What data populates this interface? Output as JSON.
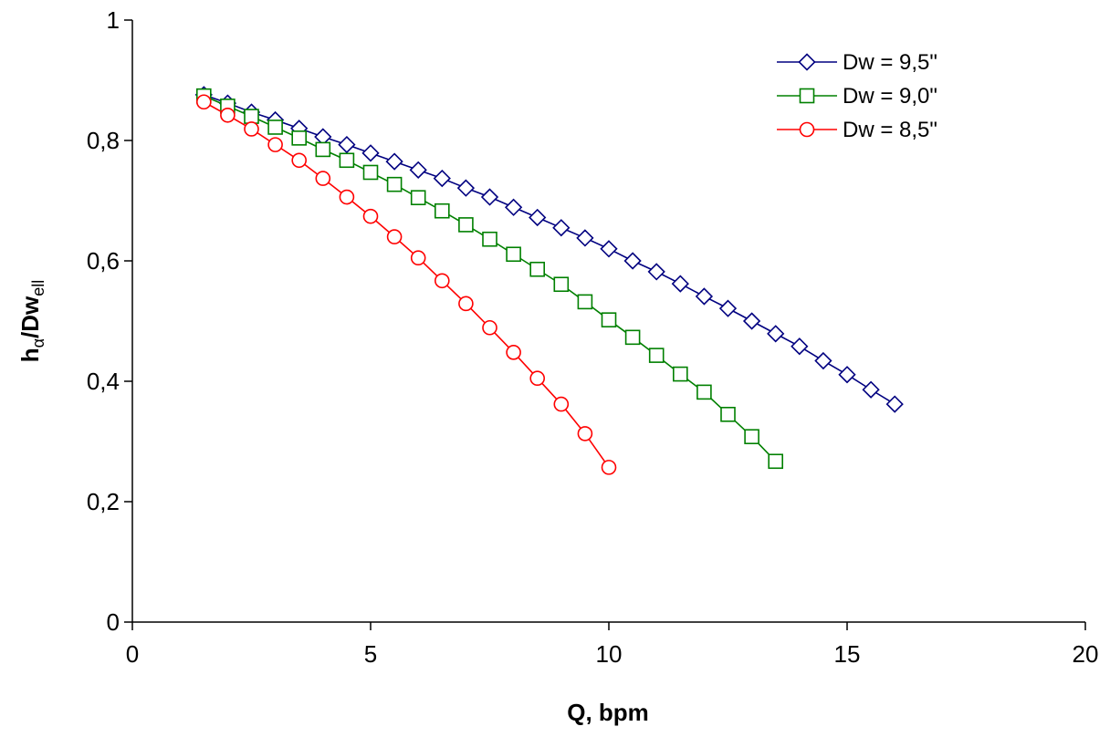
{
  "chart_data": {
    "type": "line",
    "title": "",
    "xlabel": "Q, bpm",
    "ylabel": {
      "main": "h",
      "sub1": "α",
      "mid": "/Dw",
      "sub2": "ell"
    },
    "xlim": [
      0,
      20
    ],
    "ylim": [
      0,
      1
    ],
    "xticks": [
      0,
      5,
      10,
      15,
      20
    ],
    "xtick_labels": [
      "0",
      "5",
      "10",
      "15",
      "20"
    ],
    "yticks": [
      0,
      0.2,
      0.4,
      0.6,
      0.8,
      1
    ],
    "ytick_labels": [
      "0",
      "0,2",
      "0,4",
      "0,6",
      "0,8",
      "1"
    ],
    "grid": false,
    "legend_position": "top-right",
    "series": [
      {
        "name": "Dw = 9,5\"",
        "color": "#000080",
        "marker": "diamond",
        "x": [
          1.5,
          2.0,
          2.5,
          3.0,
          3.5,
          4.0,
          4.5,
          5.0,
          5.5,
          6.0,
          6.5,
          7.0,
          7.5,
          8.0,
          8.5,
          9.0,
          9.5,
          10.0,
          10.5,
          11.0,
          11.5,
          12.0,
          12.5,
          13.0,
          13.5,
          14.0,
          14.5,
          15.0,
          15.5,
          16.0
        ],
        "y": [
          0.876,
          0.862,
          0.847,
          0.834,
          0.82,
          0.806,
          0.793,
          0.779,
          0.765,
          0.751,
          0.737,
          0.721,
          0.706,
          0.689,
          0.672,
          0.655,
          0.638,
          0.62,
          0.6,
          0.582,
          0.562,
          0.541,
          0.521,
          0.5,
          0.479,
          0.458,
          0.434,
          0.411,
          0.386,
          0.362
        ]
      },
      {
        "name": "Dw = 9,0\"",
        "color": "#008000",
        "marker": "square",
        "x": [
          1.5,
          2.0,
          2.5,
          3.0,
          3.5,
          4.0,
          4.5,
          5.0,
          5.5,
          6.0,
          6.5,
          7.0,
          7.5,
          8.0,
          8.5,
          9.0,
          9.5,
          10.0,
          10.5,
          11.0,
          11.5,
          12.0,
          12.5,
          13.0,
          13.5
        ],
        "y": [
          0.874,
          0.857,
          0.84,
          0.822,
          0.804,
          0.785,
          0.767,
          0.747,
          0.727,
          0.705,
          0.683,
          0.66,
          0.636,
          0.611,
          0.586,
          0.561,
          0.532,
          0.502,
          0.473,
          0.443,
          0.412,
          0.382,
          0.345,
          0.308,
          0.267
        ]
      },
      {
        "name": "Dw = 8,5\"",
        "color": "#ff0000",
        "marker": "circle",
        "x": [
          1.5,
          2.0,
          2.5,
          3.0,
          3.5,
          4.0,
          4.5,
          5.0,
          5.5,
          6.0,
          6.5,
          7.0,
          7.5,
          8.0,
          8.5,
          9.0,
          9.5,
          10.0
        ],
        "y": [
          0.864,
          0.842,
          0.819,
          0.793,
          0.767,
          0.737,
          0.706,
          0.674,
          0.64,
          0.605,
          0.567,
          0.529,
          0.489,
          0.448,
          0.405,
          0.362,
          0.313,
          0.257
        ]
      }
    ]
  }
}
